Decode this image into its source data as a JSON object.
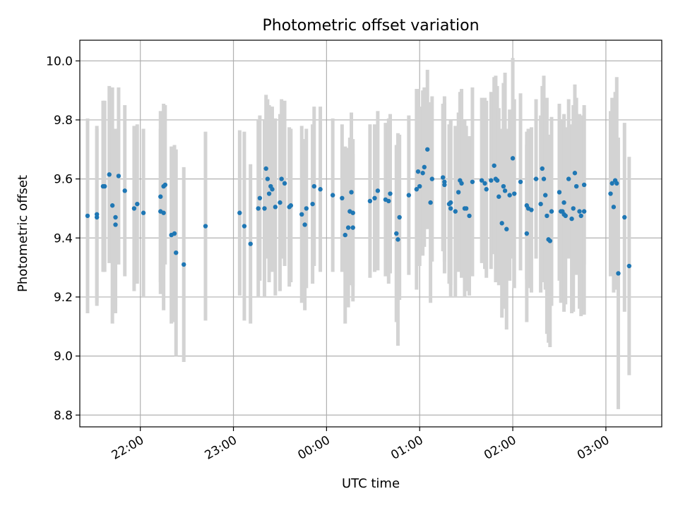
{
  "chart_data": {
    "type": "scatter",
    "title": "Photometric offset variation",
    "xlabel": "UTC time",
    "ylabel": "Photometric offset",
    "x_unit": "UTC time (HH:MM); values after midnight roll past 24:00",
    "xlim": [
      "21:21",
      "27:36"
    ],
    "ylim": [
      8.76,
      10.07
    ],
    "x_ticks": [
      {
        "t": "22:00",
        "label": "22:00"
      },
      {
        "t": "23:00",
        "label": "23:00"
      },
      {
        "t": "24:00",
        "label": "00:00"
      },
      {
        "t": "25:00",
        "label": "01:00"
      },
      {
        "t": "26:00",
        "label": "02:00"
      },
      {
        "t": "27:00",
        "label": "03:00"
      }
    ],
    "y_ticks": [
      8.8,
      9.0,
      9.2,
      9.4,
      9.6,
      9.8,
      10.0
    ],
    "grid": true,
    "marker_color": "#1f77b4",
    "errorbar_color": "#d3d3d3",
    "series": [
      {
        "points": [
          {
            "t": "21:26",
            "y": 9.475,
            "err": 0.33
          },
          {
            "t": "21:32",
            "y": 9.47,
            "err": 0.3
          },
          {
            "t": "21:32",
            "y": 9.48,
            "err": 0.3
          },
          {
            "t": "21:36",
            "y": 9.575,
            "err": 0.29
          },
          {
            "t": "21:37",
            "y": 9.575,
            "err": 0.29
          },
          {
            "t": "21:40",
            "y": 9.615,
            "err": 0.3
          },
          {
            "t": "21:42",
            "y": 9.51,
            "err": 0.4
          },
          {
            "t": "21:44",
            "y": 9.47,
            "err": 0.3
          },
          {
            "t": "21:44",
            "y": 9.445,
            "err": 0.3
          },
          {
            "t": "21:46",
            "y": 9.61,
            "err": 0.3
          },
          {
            "t": "21:50",
            "y": 9.56,
            "err": 0.29
          },
          {
            "t": "21:56",
            "y": 9.5,
            "err": 0.28
          },
          {
            "t": "21:58",
            "y": 9.515,
            "err": 0.27
          },
          {
            "t": "22:02",
            "y": 9.485,
            "err": 0.285
          },
          {
            "t": "22:13",
            "y": 9.54,
            "err": 0.29
          },
          {
            "t": "22:13",
            "y": 9.49,
            "err": 0.28
          },
          {
            "t": "22:15",
            "y": 9.485,
            "err": 0.33
          },
          {
            "t": "22:15",
            "y": 9.575,
            "err": 0.28
          },
          {
            "t": "22:16",
            "y": 9.58,
            "err": 0.27
          },
          {
            "t": "22:20",
            "y": 9.41,
            "err": 0.3
          },
          {
            "t": "22:22",
            "y": 9.415,
            "err": 0.3
          },
          {
            "t": "22:23",
            "y": 9.35,
            "err": 0.35
          },
          {
            "t": "22:28",
            "y": 9.31,
            "err": 0.33
          },
          {
            "t": "22:42",
            "y": 9.44,
            "err": 0.32
          },
          {
            "t": "23:04",
            "y": 9.485,
            "err": 0.28
          },
          {
            "t": "23:07",
            "y": 9.44,
            "err": 0.32
          },
          {
            "t": "23:11",
            "y": 9.38,
            "err": 0.27
          },
          {
            "t": "23:16",
            "y": 9.5,
            "err": 0.3
          },
          {
            "t": "23:17",
            "y": 9.535,
            "err": 0.28
          },
          {
            "t": "23:20",
            "y": 9.5,
            "err": 0.3
          },
          {
            "t": "23:21",
            "y": 9.635,
            "err": 0.25
          },
          {
            "t": "23:22",
            "y": 9.6,
            "err": 0.27
          },
          {
            "t": "23:23",
            "y": 9.55,
            "err": 0.3
          },
          {
            "t": "23:24",
            "y": 9.575,
            "err": 0.27
          },
          {
            "t": "23:25",
            "y": 9.565,
            "err": 0.28
          },
          {
            "t": "23:27",
            "y": 9.505,
            "err": 0.3
          },
          {
            "t": "23:30",
            "y": 9.52,
            "err": 0.3
          },
          {
            "t": "23:31",
            "y": 9.6,
            "err": 0.27
          },
          {
            "t": "23:33",
            "y": 9.585,
            "err": 0.28
          },
          {
            "t": "23:36",
            "y": 9.505,
            "err": 0.27
          },
          {
            "t": "23:37",
            "y": 9.51,
            "err": 0.26
          },
          {
            "t": "23:44",
            "y": 9.48,
            "err": 0.3
          },
          {
            "t": "23:46",
            "y": 9.445,
            "err": 0.29
          },
          {
            "t": "23:47",
            "y": 9.5,
            "err": 0.27
          },
          {
            "t": "23:51",
            "y": 9.515,
            "err": 0.27
          },
          {
            "t": "23:52",
            "y": 9.575,
            "err": 0.27
          },
          {
            "t": "23:56",
            "y": 9.565,
            "err": 0.28
          },
          {
            "t": "24:04",
            "y": 9.545,
            "err": 0.26
          },
          {
            "t": "24:10",
            "y": 9.535,
            "err": 0.25
          },
          {
            "t": "24:12",
            "y": 9.41,
            "err": 0.3
          },
          {
            "t": "24:14",
            "y": 9.435,
            "err": 0.27
          },
          {
            "t": "24:15",
            "y": 9.49,
            "err": 0.25
          },
          {
            "t": "24:16",
            "y": 9.555,
            "err": 0.27
          },
          {
            "t": "24:17",
            "y": 9.485,
            "err": 0.25
          },
          {
            "t": "24:17",
            "y": 9.435,
            "err": 0.25
          },
          {
            "t": "24:28",
            "y": 9.525,
            "err": 0.26
          },
          {
            "t": "24:31",
            "y": 9.535,
            "err": 0.25
          },
          {
            "t": "24:33",
            "y": 9.56,
            "err": 0.27
          },
          {
            "t": "24:38",
            "y": 9.53,
            "err": 0.26
          },
          {
            "t": "24:40",
            "y": 9.525,
            "err": 0.28
          },
          {
            "t": "24:41",
            "y": 9.55,
            "err": 0.27
          },
          {
            "t": "24:45",
            "y": 9.415,
            "err": 0.3
          },
          {
            "t": "24:46",
            "y": 9.395,
            "err": 0.36
          },
          {
            "t": "24:47",
            "y": 9.47,
            "err": 0.28
          },
          {
            "t": "24:53",
            "y": 9.545,
            "err": 0.27
          },
          {
            "t": "24:58",
            "y": 9.565,
            "err": 0.34
          },
          {
            "t": "24:59",
            "y": 9.625,
            "err": 0.28
          },
          {
            "t": "25:00",
            "y": 9.575,
            "err": 0.27
          },
          {
            "t": "25:02",
            "y": 9.62,
            "err": 0.28
          },
          {
            "t": "25:03",
            "y": 9.64,
            "err": 0.27
          },
          {
            "t": "25:05",
            "y": 9.7,
            "err": 0.27
          },
          {
            "t": "25:07",
            "y": 9.52,
            "err": 0.34
          },
          {
            "t": "25:08",
            "y": 9.6,
            "err": 0.28
          },
          {
            "t": "25:15",
            "y": 9.605,
            "err": 0.25
          },
          {
            "t": "25:16",
            "y": 9.59,
            "err": 0.27
          },
          {
            "t": "25:16",
            "y": 9.58,
            "err": 0.3
          },
          {
            "t": "25:19",
            "y": 9.515,
            "err": 0.27
          },
          {
            "t": "25:20",
            "y": 9.52,
            "err": 0.28
          },
          {
            "t": "25:20",
            "y": 9.5,
            "err": 0.3
          },
          {
            "t": "25:23",
            "y": 9.49,
            "err": 0.29
          },
          {
            "t": "25:25",
            "y": 9.555,
            "err": 0.27
          },
          {
            "t": "25:26",
            "y": 9.595,
            "err": 0.3
          },
          {
            "t": "25:27",
            "y": 9.585,
            "err": 0.32
          },
          {
            "t": "25:29",
            "y": 9.5,
            "err": 0.3
          },
          {
            "t": "25:30",
            "y": 9.5,
            "err": 0.28
          },
          {
            "t": "25:32",
            "y": 9.475,
            "err": 0.27
          },
          {
            "t": "25:34",
            "y": 9.59,
            "err": 0.32
          },
          {
            "t": "25:40",
            "y": 9.595,
            "err": 0.28
          },
          {
            "t": "25:42",
            "y": 9.585,
            "err": 0.29
          },
          {
            "t": "25:43",
            "y": 9.565,
            "err": 0.3
          },
          {
            "t": "25:46",
            "y": 9.595,
            "err": 0.3
          },
          {
            "t": "25:48",
            "y": 9.645,
            "err": 0.3
          },
          {
            "t": "25:49",
            "y": 9.6,
            "err": 0.35
          },
          {
            "t": "25:50",
            "y": 9.595,
            "err": 0.32
          },
          {
            "t": "25:51",
            "y": 9.54,
            "err": 0.3
          },
          {
            "t": "25:53",
            "y": 9.45,
            "err": 0.32
          },
          {
            "t": "25:54",
            "y": 9.575,
            "err": 0.35
          },
          {
            "t": "25:55",
            "y": 9.56,
            "err": 0.4
          },
          {
            "t": "25:56",
            "y": 9.43,
            "err": 0.34
          },
          {
            "t": "25:58",
            "y": 9.545,
            "err": 0.29
          },
          {
            "t": "26:00",
            "y": 9.67,
            "err": 0.34
          },
          {
            "t": "26:01",
            "y": 9.55,
            "err": 0.32
          },
          {
            "t": "26:05",
            "y": 9.59,
            "err": 0.3
          },
          {
            "t": "26:09",
            "y": 9.415,
            "err": 0.3
          },
          {
            "t": "26:09",
            "y": 9.51,
            "err": 0.25
          },
          {
            "t": "26:10",
            "y": 9.5,
            "err": 0.27
          },
          {
            "t": "26:12",
            "y": 9.495,
            "err": 0.28
          },
          {
            "t": "26:15",
            "y": 9.6,
            "err": 0.27
          },
          {
            "t": "26:18",
            "y": 9.515,
            "err": 0.3
          },
          {
            "t": "26:19",
            "y": 9.635,
            "err": 0.28
          },
          {
            "t": "26:20",
            "y": 9.6,
            "err": 0.35
          },
          {
            "t": "26:21",
            "y": 9.545,
            "err": 0.32
          },
          {
            "t": "26:22",
            "y": 9.475,
            "err": 0.4
          },
          {
            "t": "26:23",
            "y": 9.395,
            "err": 0.35
          },
          {
            "t": "26:24",
            "y": 9.39,
            "err": 0.36
          },
          {
            "t": "26:25",
            "y": 9.49,
            "err": 0.32
          },
          {
            "t": "26:30",
            "y": 9.555,
            "err": 0.3
          },
          {
            "t": "26:31",
            "y": 9.49,
            "err": 0.31
          },
          {
            "t": "26:32",
            "y": 9.49,
            "err": 0.3
          },
          {
            "t": "26:33",
            "y": 9.52,
            "err": 0.3
          },
          {
            "t": "26:33",
            "y": 9.48,
            "err": 0.33
          },
          {
            "t": "26:34",
            "y": 9.475,
            "err": 0.3
          },
          {
            "t": "26:36",
            "y": 9.6,
            "err": 0.27
          },
          {
            "t": "26:38",
            "y": 9.465,
            "err": 0.32
          },
          {
            "t": "26:39",
            "y": 9.5,
            "err": 0.35
          },
          {
            "t": "26:40",
            "y": 9.62,
            "err": 0.3
          },
          {
            "t": "26:41",
            "y": 9.575,
            "err": 0.3
          },
          {
            "t": "26:43",
            "y": 9.49,
            "err": 0.33
          },
          {
            "t": "26:44",
            "y": 9.475,
            "err": 0.34
          },
          {
            "t": "26:46",
            "y": 9.58,
            "err": 0.27
          },
          {
            "t": "26:46",
            "y": 9.49,
            "err": 0.35
          },
          {
            "t": "27:03",
            "y": 9.55,
            "err": 0.28
          },
          {
            "t": "27:04",
            "y": 9.585,
            "err": 0.29
          },
          {
            "t": "27:05",
            "y": 9.505,
            "err": 0.29
          },
          {
            "t": "27:06",
            "y": 9.595,
            "err": 0.3
          },
          {
            "t": "27:07",
            "y": 9.585,
            "err": 0.36
          },
          {
            "t": "27:08",
            "y": 9.28,
            "err": 0.46
          },
          {
            "t": "27:12",
            "y": 9.47,
            "err": 0.32
          },
          {
            "t": "27:15",
            "y": 9.305,
            "err": 0.37
          }
        ]
      }
    ]
  }
}
